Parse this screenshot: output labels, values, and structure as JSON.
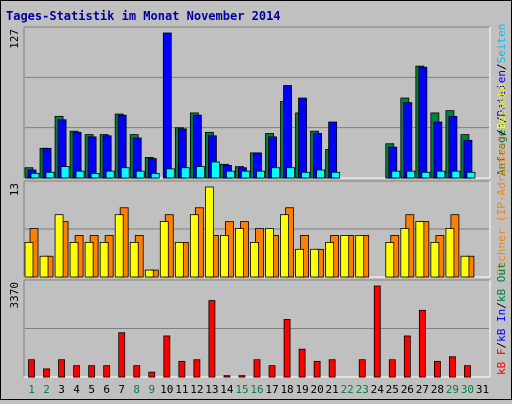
{
  "chart_data": {
    "type": "bar",
    "title": "Tages-Statistik im Monat November 2014",
    "categories": [
      "1",
      "2",
      "3",
      "4",
      "5",
      "6",
      "7",
      "8",
      "9",
      "10",
      "11",
      "12",
      "13",
      "14",
      "15",
      "16",
      "17",
      "18",
      "19",
      "20",
      "21",
      "22",
      "23",
      "24",
      "25",
      "26",
      "27",
      "28",
      "29",
      "30",
      "31"
    ],
    "weekend_days": [
      "1",
      "2",
      "8",
      "9",
      "15",
      "16",
      "22",
      "23",
      "29",
      "30"
    ],
    "panels": [
      {
        "id": "top",
        "ymax_label": "127",
        "ymax": 127,
        "right_label_parts": [
          {
            "text": "Anfragen",
            "color": "#008040"
          },
          {
            "text": "/",
            "color": "#000000"
          },
          {
            "text": "Dateien",
            "color": "#0000FF"
          },
          {
            "text": "/",
            "color": "#000000"
          },
          {
            "text": "Seiten",
            "color": "#00C0FF"
          }
        ],
        "series": [
          {
            "name": "Anfragen",
            "color": "#008040",
            "values": [
              9,
              26,
              54,
              41,
              38,
              38,
              56,
              38,
              18,
              0,
              44,
              57,
              40,
              12,
              10,
              22,
              39,
              67,
              57,
              41,
              25,
              0,
              0,
              0,
              30,
              70,
              98,
              57,
              59,
              38,
              0
            ]
          },
          {
            "name": "Dateien",
            "color": "#0000FF",
            "values": [
              7,
              26,
              51,
              40,
              36,
              37,
              55,
              35,
              17,
              127,
              43,
              55,
              37,
              11,
              9,
              22,
              36,
              81,
              70,
              39,
              49,
              0,
              0,
              0,
              27,
              66,
              97,
              49,
              54,
              33,
              0
            ]
          },
          {
            "name": "Seiten",
            "color": "#00FFFF",
            "values": [
              4,
              5,
              10,
              6,
              4,
              6,
              9,
              6,
              4,
              8,
              9,
              10,
              14,
              6,
              6,
              6,
              9,
              9,
              5,
              7,
              5,
              0,
              0,
              0,
              6,
              6,
              5,
              6,
              6,
              5,
              0
            ]
          }
        ]
      },
      {
        "id": "mid",
        "ymax_label": "13",
        "ymax": 13,
        "right_label_parts": [
          {
            "text": "Rechner (IP-Adressen)",
            "color": "#FF8000"
          },
          {
            "text": "/",
            "color": "#000000"
          },
          {
            "text": "Besuche",
            "color": "#FFFF00"
          }
        ],
        "series": [
          {
            "name": "Rechner (IP-Adressen)",
            "color": "#FF8000",
            "values": [
              7,
              3,
              8,
              6,
              6,
              6,
              10,
              6,
              1,
              9,
              5,
              10,
              6,
              8,
              8,
              7,
              6,
              10,
              6,
              4,
              6,
              6,
              6,
              0,
              6,
              9,
              8,
              6,
              9,
              3,
              0
            ]
          },
          {
            "name": "Besuche",
            "color": "#FFFF00",
            "values": [
              5,
              3,
              9,
              5,
              5,
              5,
              9,
              5,
              1,
              8,
              5,
              9,
              13,
              6,
              7,
              5,
              7,
              9,
              4,
              4,
              5,
              6,
              6,
              0,
              5,
              7,
              8,
              5,
              7,
              3,
              0
            ]
          }
        ]
      },
      {
        "id": "bot",
        "ymax_label": "3370",
        "ymax": 3370,
        "right_label_parts": [
          {
            "text": "kB F",
            "color": "#FF0000"
          },
          {
            "text": "/",
            "color": "#000000"
          },
          {
            "text": "kB In",
            "color": "#0000FF"
          },
          {
            "text": "/",
            "color": "#000000"
          },
          {
            "text": "kB Out",
            "color": "#008040"
          }
        ],
        "series": [
          {
            "name": "kB F",
            "color": "#FF0000",
            "values": [
              640,
              300,
              640,
              420,
              420,
              420,
              1640,
              420,
              180,
              1520,
              580,
              640,
              2830,
              50,
              50,
              640,
              420,
              2130,
              1030,
              580,
              640,
              0,
              640,
              3370,
              640,
              1520,
              2470,
              580,
              750,
              420,
              0
            ]
          }
        ]
      }
    ]
  }
}
